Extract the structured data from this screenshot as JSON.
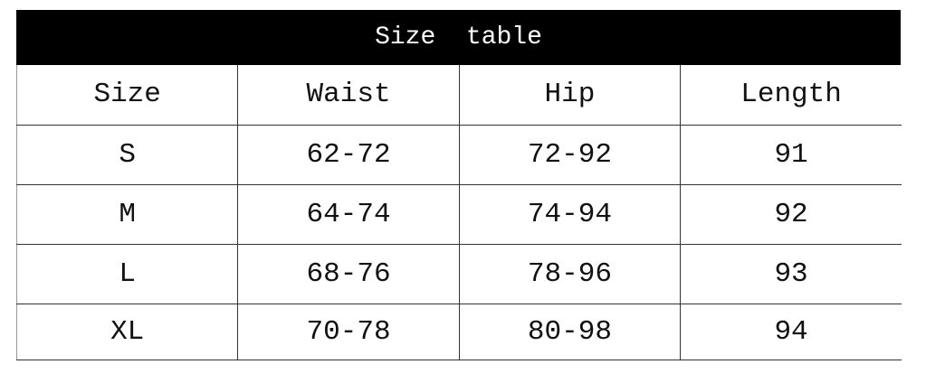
{
  "title": "Size  table",
  "headers": [
    "Size",
    "Waist",
    "Hip",
    "Length"
  ],
  "rows": [
    [
      "S",
      "62-72",
      "72-92",
      "91"
    ],
    [
      "M",
      "64-74",
      "74-94",
      "92"
    ],
    [
      "L",
      "68-76",
      "78-96",
      "93"
    ],
    [
      "XL",
      "70-78",
      "80-98",
      "94"
    ]
  ]
}
